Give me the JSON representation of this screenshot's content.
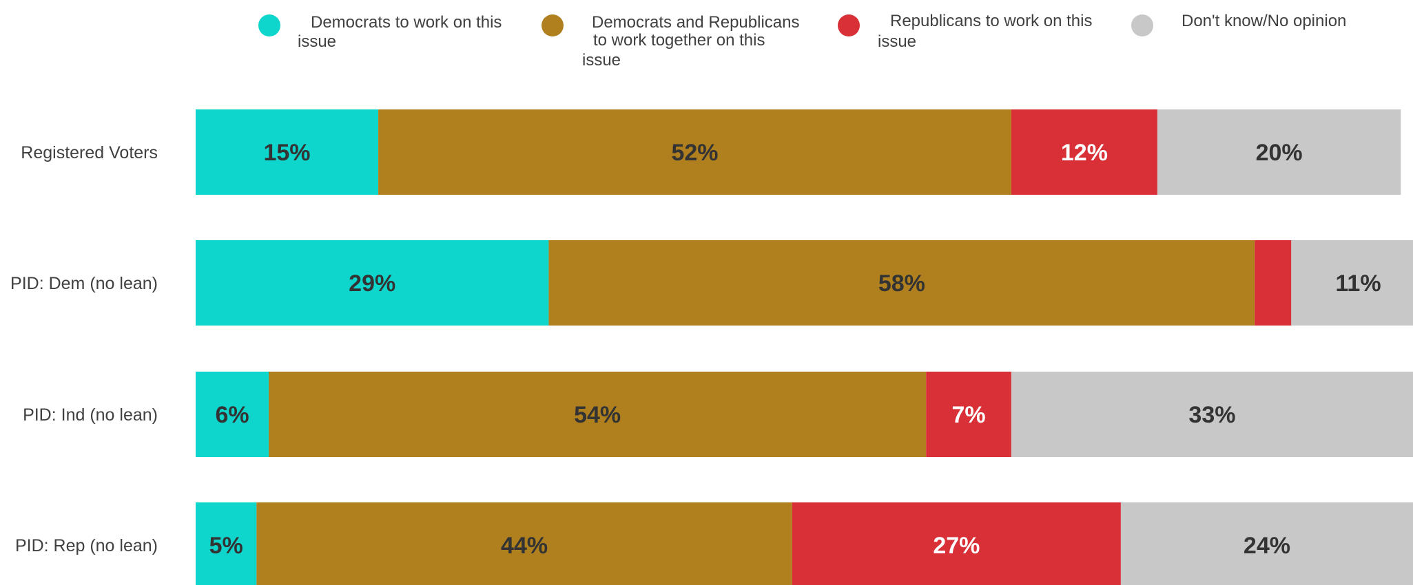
{
  "chart_data": {
    "type": "bar",
    "orientation": "horizontal",
    "stacked": true,
    "categories": [
      "Registered Voters",
      "PID: Dem (no lean)",
      "PID: Ind (no lean)",
      "PID: Rep (no lean)"
    ],
    "series": [
      {
        "name": "Democrats to work on this issue",
        "color": "#0fd6cc",
        "label_color": "#333333",
        "values": [
          15,
          29,
          6,
          5
        ],
        "value_labels": [
          "15%",
          "29%",
          "6%",
          "5%"
        ]
      },
      {
        "name": "Democrats and Republicans to work together on this issue",
        "color": "#b0801e",
        "label_color": "#333333",
        "values": [
          52,
          58,
          54,
          44
        ],
        "value_labels": [
          "52%",
          "58%",
          "54%",
          "44%"
        ]
      },
      {
        "name": "Republicans to work on this issue",
        "color": "#d93037",
        "label_color": "#ffffff",
        "values": [
          12,
          3,
          7,
          27
        ],
        "value_labels": [
          "12%",
          "",
          "7%",
          "27%"
        ]
      },
      {
        "name": "Don't know/No opinion",
        "color": "#c8c8c8",
        "label_color": "#333333",
        "values": [
          20,
          11,
          33,
          24
        ],
        "value_labels": [
          "20%",
          "11%",
          "33%",
          "24%"
        ]
      }
    ],
    "legend": {
      "position": "top",
      "entries": [
        {
          "lines": [
            "Democrats to work on this",
            "issue"
          ]
        },
        {
          "lines": [
            "Democrats and Republicans",
            "to work together on this",
            "issue"
          ]
        },
        {
          "lines": [
            "Republicans to work on this",
            "issue"
          ]
        },
        {
          "lines": [
            "Don't know/No opinion"
          ]
        }
      ]
    },
    "xlim": [
      0,
      100
    ],
    "grid": false
  }
}
